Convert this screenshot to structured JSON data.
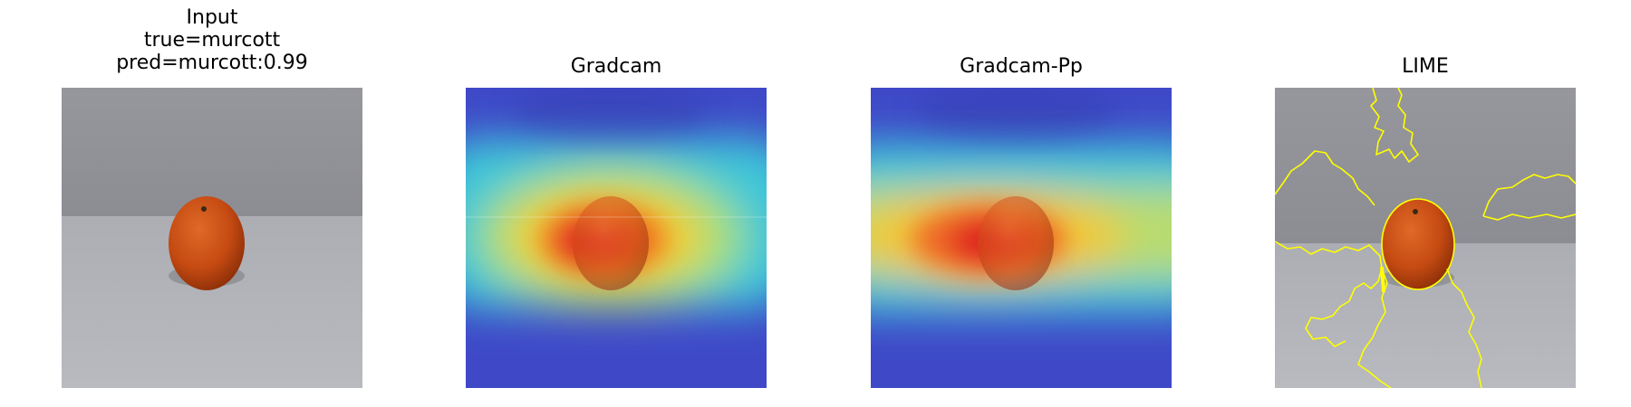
{
  "panels": [
    {
      "name": "input",
      "title_lines": [
        "Input",
        "true=murcott",
        "pred=murcott:0.99"
      ]
    },
    {
      "name": "gradcam",
      "title_lines": [
        "Gradcam"
      ]
    },
    {
      "name": "gradcam-pp",
      "title_lines": [
        "Gradcam-Pp"
      ]
    },
    {
      "name": "lime",
      "title_lines": [
        "LIME"
      ]
    }
  ],
  "colors": {
    "wall": "#8f9096",
    "table": "#b4b6bb",
    "fruit": "#c44a12",
    "heatmap_low": "#3d47c9",
    "heatmap_mid": "#6fe0a0",
    "heatmap_high": "#e02020",
    "lime_boundary": "#ffff00"
  }
}
